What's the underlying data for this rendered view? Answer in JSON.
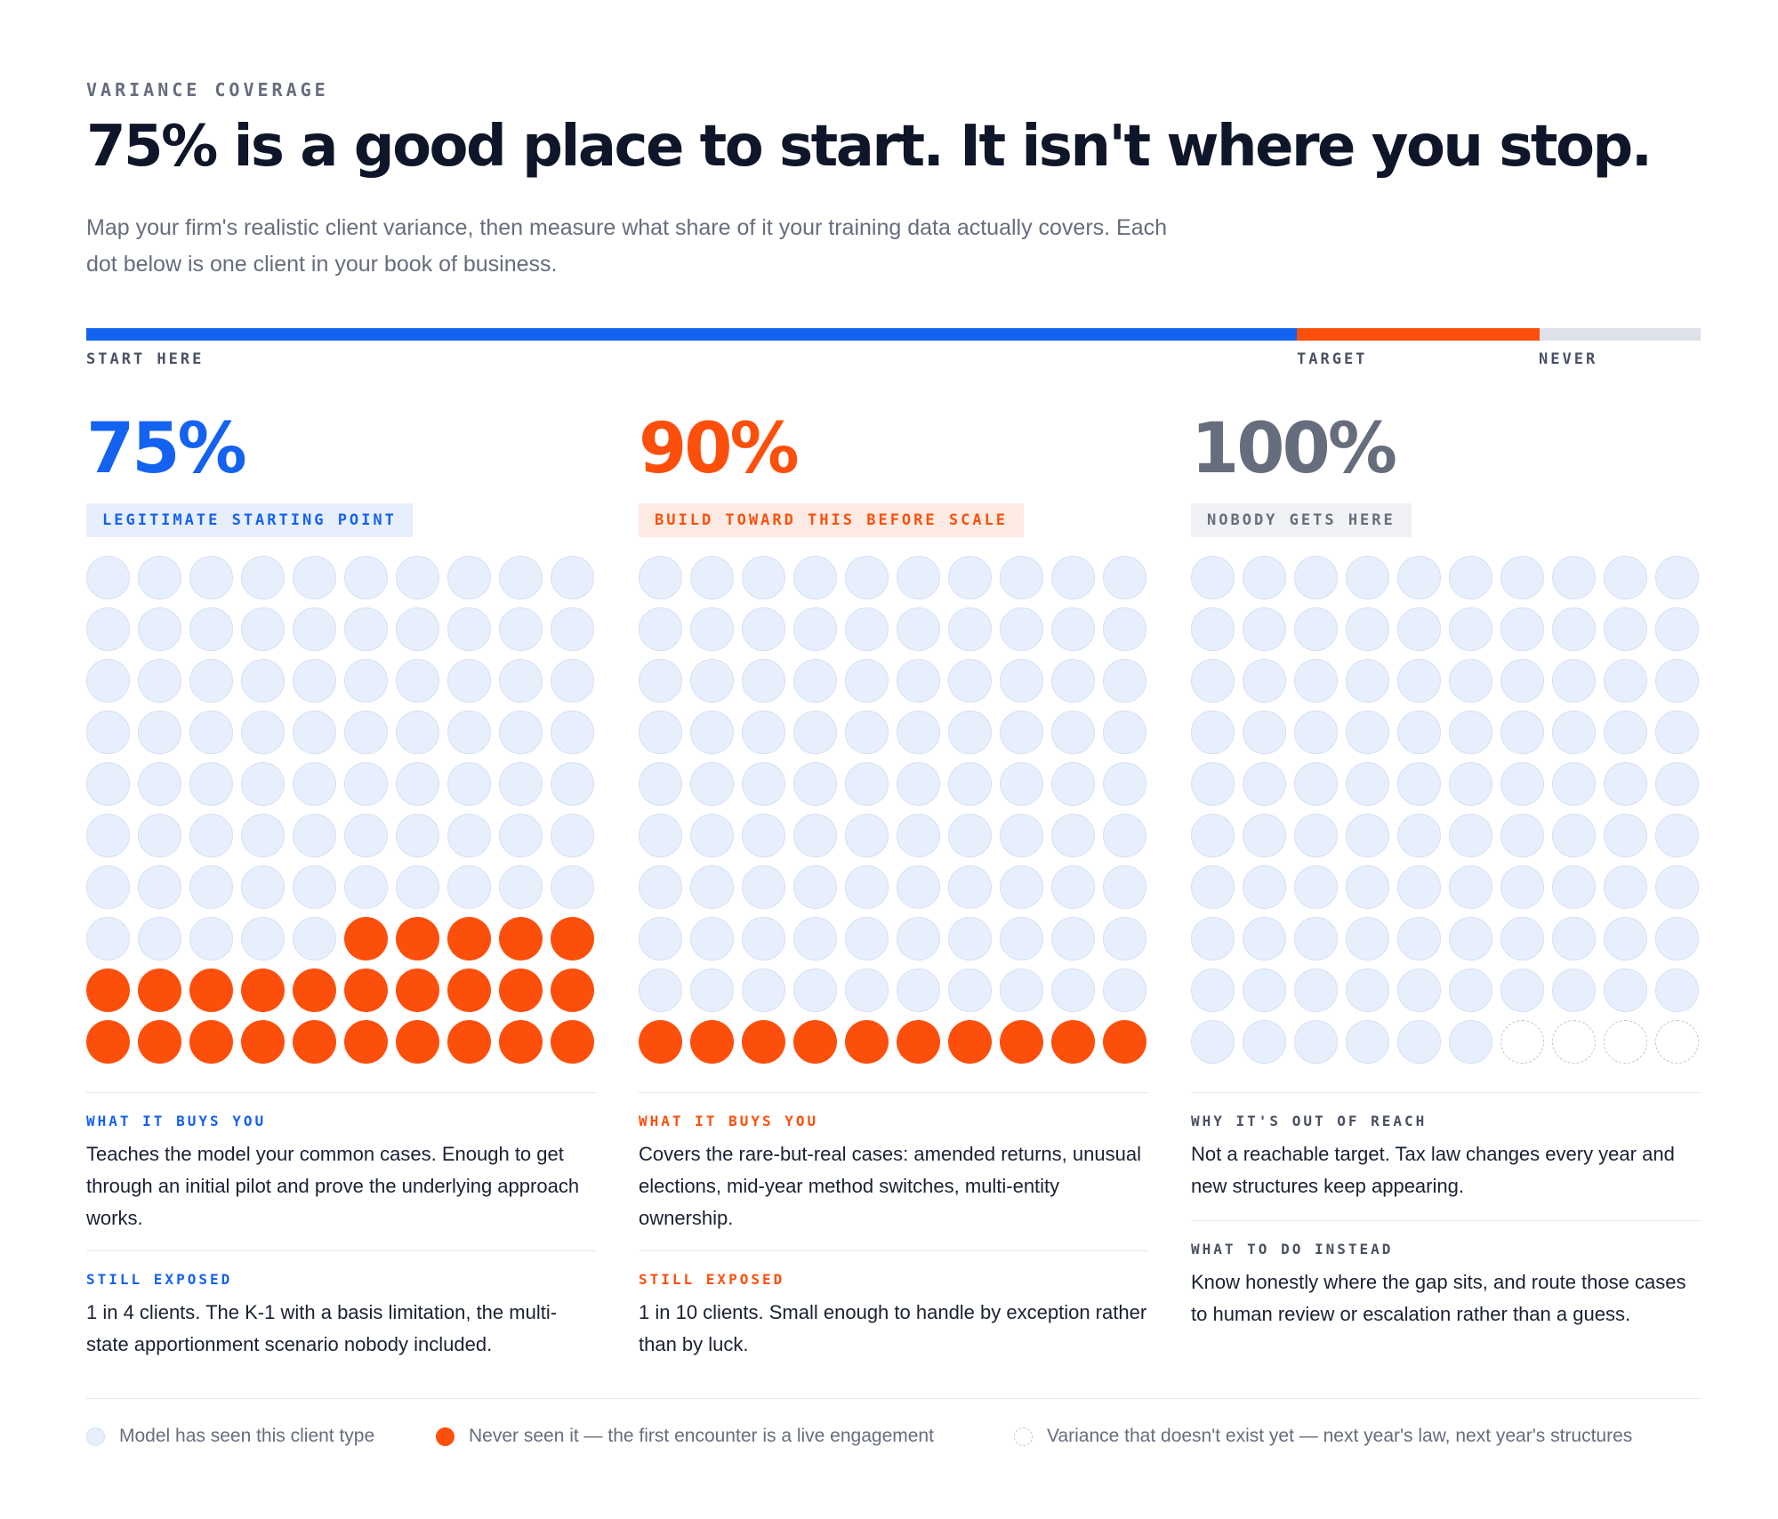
{
  "eyebrow": "VARIANCE COVERAGE",
  "title": "75% is a good place to start. It isn't where you stop.",
  "subtitle": "Map your firm's realistic client variance, then measure what share of it your training data actually covers. Each dot below is one client in your book of business.",
  "progress": {
    "segments": [
      {
        "name": "start",
        "percent": 75,
        "color": "#1462f0"
      },
      {
        "name": "target",
        "percent": 15,
        "color": "#fc4f0c"
      },
      {
        "name": "never",
        "percent": 10,
        "color": "#dde1e8"
      }
    ],
    "labels": {
      "start": "START HERE",
      "target": "TARGET",
      "never": "NEVER"
    }
  },
  "columns": [
    {
      "percent": "75%",
      "color": "#1462f0",
      "badge": "LEGITIMATE STARTING POINT",
      "badge_bg": "#e8effc",
      "seen_count": 75,
      "never_count": 25,
      "future_count": 0,
      "sections": [
        {
          "label": "WHAT IT BUYS YOU",
          "text": "Teaches the model your common cases. Enough to get through an initial pilot and prove the underlying approach works."
        },
        {
          "label": "STILL EXPOSED",
          "text": "1 in 4 clients. The K-1 with a basis limitation, the multi-state apportionment scenario nobody included."
        }
      ]
    },
    {
      "percent": "90%",
      "color": "#fc4f0c",
      "badge": "BUILD TOWARD THIS BEFORE SCALE",
      "badge_bg": "#fdebe3",
      "seen_count": 90,
      "never_count": 10,
      "future_count": 0,
      "sections": [
        {
          "label": "WHAT IT BUYS YOU",
          "text": "Covers the rare-but-real cases: amended returns, unusual elections, mid-year method switches, multi-entity ownership."
        },
        {
          "label": "STILL EXPOSED",
          "text": "1 in 10 clients. Small enough to handle by exception rather than by luck."
        }
      ]
    },
    {
      "percent": "100%",
      "color": "#666d7d",
      "badge": "NOBODY GETS HERE",
      "badge_bg": "#eff1f4",
      "seen_count": 96,
      "never_count": 0,
      "future_count": 4,
      "sections": [
        {
          "label": "WHY IT'S OUT OF REACH",
          "text": "Not a reachable target. Tax law changes every year and new structures keep appearing."
        },
        {
          "label": "WHAT TO DO INSTEAD",
          "text": "Know honestly where the gap sits, and route those cases to human review or escalation rather than a guess."
        }
      ]
    }
  ],
  "legend": [
    {
      "type": "seen",
      "text": "Model has seen this client type"
    },
    {
      "type": "never",
      "text": "Never seen it — the first encounter is a live engagement"
    },
    {
      "type": "future",
      "text": "Variance that doesn't exist yet — next year's law, next year's structures"
    }
  ]
}
